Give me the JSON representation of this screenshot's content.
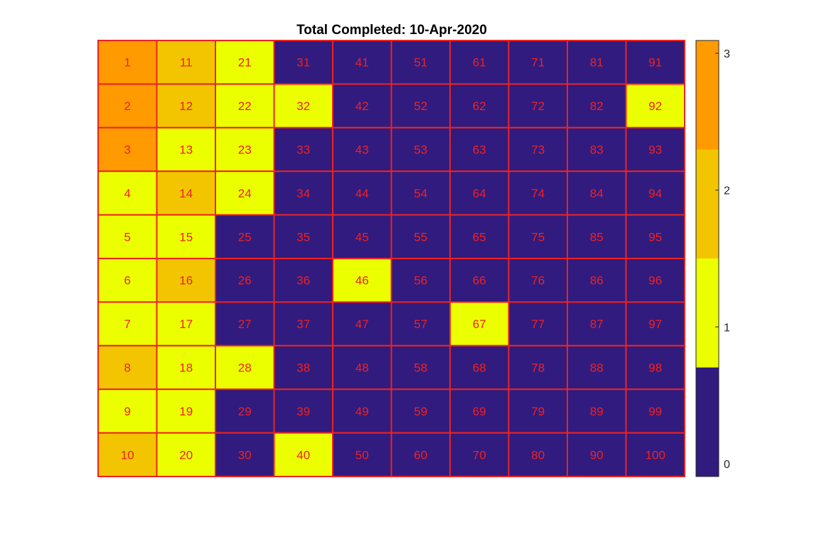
{
  "chart_data": {
    "type": "heatmap",
    "title": "Total Completed: 10-Apr-2020",
    "xlabel": "",
    "ylabel": "",
    "rows": 10,
    "cols": 10,
    "cell_labels": [
      [
        "1",
        "11",
        "21",
        "31",
        "41",
        "51",
        "61",
        "71",
        "81",
        "91"
      ],
      [
        "2",
        "12",
        "22",
        "32",
        "42",
        "52",
        "62",
        "72",
        "82",
        "92"
      ],
      [
        "3",
        "13",
        "23",
        "33",
        "43",
        "53",
        "63",
        "73",
        "83",
        "93"
      ],
      [
        "4",
        "14",
        "24",
        "34",
        "44",
        "54",
        "64",
        "74",
        "84",
        "94"
      ],
      [
        "5",
        "15",
        "25",
        "35",
        "45",
        "55",
        "65",
        "75",
        "85",
        "95"
      ],
      [
        "6",
        "16",
        "26",
        "36",
        "46",
        "56",
        "66",
        "76",
        "86",
        "96"
      ],
      [
        "7",
        "17",
        "27",
        "37",
        "47",
        "57",
        "67",
        "77",
        "87",
        "97"
      ],
      [
        "8",
        "18",
        "28",
        "38",
        "48",
        "58",
        "68",
        "78",
        "88",
        "98"
      ],
      [
        "9",
        "19",
        "29",
        "39",
        "49",
        "59",
        "69",
        "79",
        "89",
        "99"
      ],
      [
        "10",
        "20",
        "30",
        "40",
        "50",
        "60",
        "70",
        "80",
        "90",
        "100"
      ]
    ],
    "values": [
      [
        3,
        2,
        1,
        0,
        0,
        0,
        0,
        0,
        0,
        0
      ],
      [
        3,
        2,
        1,
        1,
        0,
        0,
        0,
        0,
        0,
        1
      ],
      [
        3,
        1,
        1,
        0,
        0,
        0,
        0,
        0,
        0,
        0
      ],
      [
        1,
        2,
        1,
        0,
        0,
        0,
        0,
        0,
        0,
        0
      ],
      [
        1,
        1,
        0,
        0,
        0,
        0,
        0,
        0,
        0,
        0
      ],
      [
        1,
        2,
        0,
        0,
        1,
        0,
        0,
        0,
        0,
        0
      ],
      [
        1,
        1,
        0,
        0,
        0,
        0,
        1,
        0,
        0,
        0
      ],
      [
        2,
        1,
        1,
        0,
        0,
        0,
        0,
        0,
        0,
        0
      ],
      [
        1,
        1,
        0,
        0,
        0,
        0,
        0,
        0,
        0,
        0
      ],
      [
        2,
        1,
        0,
        1,
        0,
        0,
        0,
        0,
        0,
        0
      ]
    ],
    "colormap": [
      "#311b7e",
      "#ecff00",
      "#f2c500",
      "#ff9b00"
    ],
    "cell_edge_color": "#ee2222",
    "label_color": "#ee2222",
    "colorbar": {
      "placement": "right",
      "clim": [
        0,
        3
      ],
      "ticks": [
        0,
        1,
        2,
        3
      ],
      "tick_labels": [
        "0",
        "1",
        "2",
        "3"
      ]
    },
    "grid": false
  }
}
